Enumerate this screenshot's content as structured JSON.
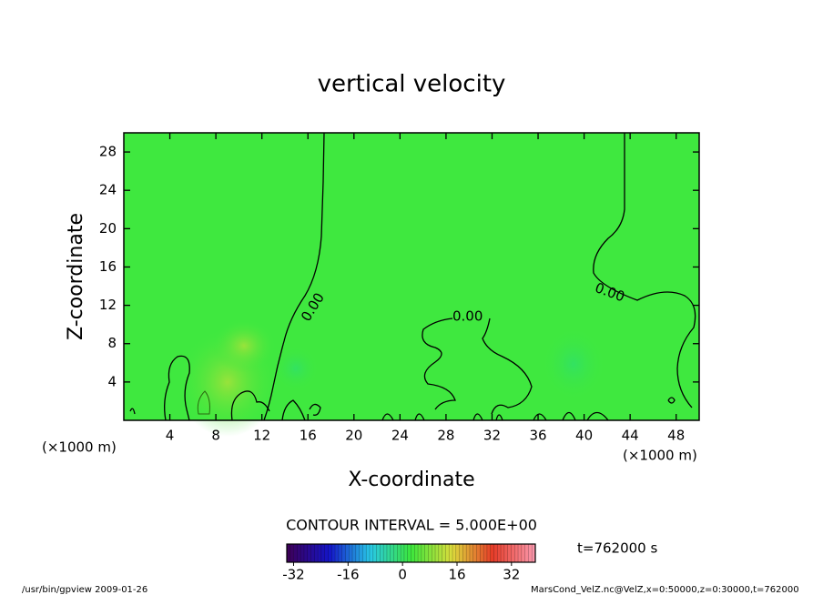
{
  "chart_data": {
    "type": "contour",
    "title": "vertical velocity",
    "xlabel": "X-coordinate",
    "ylabel": "Z-coordinate",
    "x_unit": "(×1000 m)",
    "y_unit": "(×1000 m)",
    "xlim": [
      0,
      50
    ],
    "ylim": [
      0,
      30
    ],
    "xticks": [
      4,
      8,
      12,
      16,
      20,
      24,
      28,
      32,
      36,
      40,
      44,
      48
    ],
    "yticks": [
      4,
      8,
      12,
      16,
      20,
      24,
      28
    ],
    "fill_color": "#3fe83f",
    "contour_labels": [
      "0.00",
      "0.00",
      "0.00"
    ],
    "contour_interval": "CONTOUR INTERVAL = 5.000E+00",
    "time_label": "t=762000 s",
    "colorbar": {
      "lim": [
        -34,
        39
      ],
      "ticks": [
        -32,
        -16,
        0,
        16,
        32
      ]
    },
    "footer_left": "/usr/bin/gpview   2009-01-26",
    "footer_right": "MarsCond_VelZ.nc@VelZ,x=0:50000,z=0:30000,t=762000"
  }
}
